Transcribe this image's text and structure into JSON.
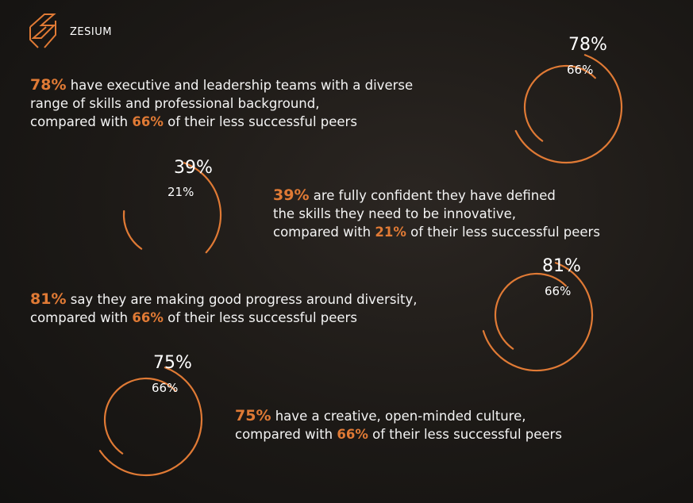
{
  "brand": {
    "name": "ZESIUM"
  },
  "colors": {
    "accent": "#e07a35",
    "text": "#f4f4f4",
    "background": "#1c1916"
  },
  "stats": [
    {
      "value": "78%",
      "peer_value": "66%",
      "lines": [
        {
          "hl": "78%",
          "text": " have executive and leadership teams with a diverse"
        },
        {
          "hl": "",
          "text": "range of skills and professional background,"
        },
        {
          "pre": "compared with ",
          "hl": "66%",
          "text": " of their less successful peers"
        }
      ]
    },
    {
      "value": "39%",
      "peer_value": "21%",
      "lines": [
        {
          "hl": "39%",
          "text": " are fully confident they have defined"
        },
        {
          "hl": "",
          "text": "the skills they need to be innovative,"
        },
        {
          "pre": "compared with ",
          "hl": "21%",
          "text": " of their less successful peers"
        }
      ]
    },
    {
      "value": "81%",
      "peer_value": "66%",
      "lines": [
        {
          "hl": "81%",
          "text": " say they are making good progress around diversity,"
        },
        {
          "pre": "compared with ",
          "hl": "66%",
          "text": " of their less successful peers"
        }
      ]
    },
    {
      "value": "75%",
      "peer_value": "66%",
      "lines": [
        {
          "hl": "75%",
          "text": "  have a creative, open-minded culture,"
        },
        {
          "pre": "compared with ",
          "hl": "66%",
          "text": " of their less successful peers"
        }
      ]
    }
  ],
  "chart_data": {
    "type": "radial",
    "series": [
      {
        "name": "",
        "values": [
          78,
          39,
          81,
          75
        ]
      },
      {
        "name": "",
        "values": [
          66,
          21,
          66,
          66
        ]
      }
    ],
    "categories": [
      "78%",
      "39%",
      "81%",
      "75%"
    ]
  }
}
